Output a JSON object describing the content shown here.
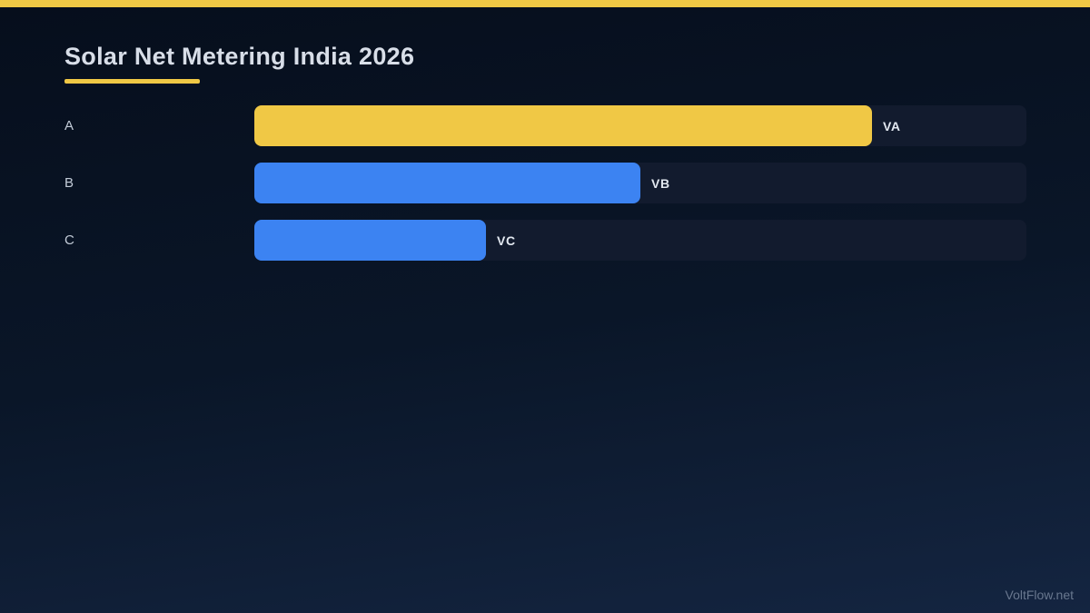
{
  "header": {
    "title": "Solar Net Metering India 2026"
  },
  "chart_data": {
    "type": "bar",
    "orientation": "horizontal",
    "title": "Solar Net Metering India 2026",
    "categories": [
      "A",
      "B",
      "C"
    ],
    "values": [
      0.8,
      0.5,
      0.3
    ],
    "value_labels": [
      "VA",
      "VB",
      "VC"
    ],
    "bar_colors": [
      "#f0c845",
      "#3c83f2",
      "#3c83f2"
    ],
    "track_color": "#121b2e",
    "xlim": [
      0,
      1
    ],
    "grid": false,
    "legend": false
  },
  "footer": {
    "watermark": "VoltFlow.net"
  },
  "colors": {
    "accent_yellow": "#f0c845",
    "bar_blue": "#3c83f2",
    "background_top": "#060e1c",
    "background_bottom": "#142541",
    "title_text": "#d8dee8",
    "category_text": "#c3ccd8",
    "value_text": "#e2e8f0",
    "watermark_text": "#8593a9"
  }
}
